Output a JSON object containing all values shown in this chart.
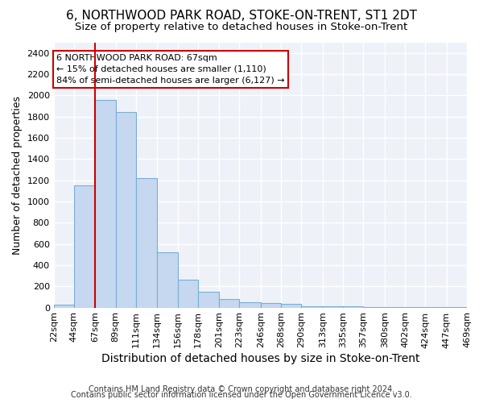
{
  "title": "6, NORTHWOOD PARK ROAD, STOKE-ON-TRENT, ST1 2DT",
  "subtitle": "Size of property relative to detached houses in Stoke-on-Trent",
  "xlabel": "Distribution of detached houses by size in Stoke-on-Trent",
  "ylabel": "Number of detached properties",
  "footnote1": "Contains HM Land Registry data © Crown copyright and database right 2024.",
  "footnote2": "Contains public sector information licensed under the Open Government Licence v3.0.",
  "bin_edges": [
    22,
    44,
    67,
    89,
    111,
    134,
    156,
    178,
    201,
    223,
    246,
    268,
    290,
    313,
    335,
    357,
    380,
    402,
    424,
    447,
    469
  ],
  "bar_heights": [
    30,
    1150,
    1960,
    1840,
    1220,
    520,
    265,
    150,
    80,
    50,
    45,
    35,
    10,
    10,
    10,
    5,
    5,
    5,
    5,
    5
  ],
  "bar_color": "#c5d8f0",
  "bar_edge_color": "#7aadd4",
  "property_size": 67,
  "vline_color": "#cc0000",
  "annotation_line1": "6 NORTHWOOD PARK ROAD: 67sqm",
  "annotation_line2": "← 15% of detached houses are smaller (1,110)",
  "annotation_line3": "84% of semi-detached houses are larger (6,127) →",
  "annotation_box_color": "#cc0000",
  "annotation_text_color": "#000000",
  "ylim": [
    0,
    2500
  ],
  "yticks": [
    0,
    200,
    400,
    600,
    800,
    1000,
    1200,
    1400,
    1600,
    1800,
    2000,
    2200,
    2400
  ],
  "background_color": "#ffffff",
  "axes_bg_color": "#eef2f8",
  "grid_color": "#ffffff",
  "title_fontsize": 11,
  "subtitle_fontsize": 9.5,
  "xlabel_fontsize": 10,
  "ylabel_fontsize": 9,
  "tick_fontsize": 8,
  "annotation_fontsize": 8,
  "footnote_fontsize": 7
}
